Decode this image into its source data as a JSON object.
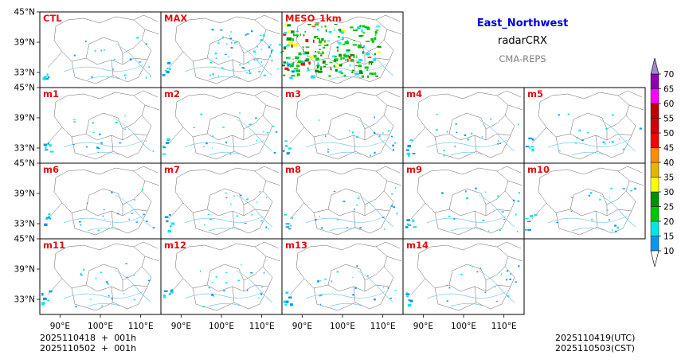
{
  "titles": {
    "region": "East_Northwest",
    "variable": "radarCRX",
    "model": "CMA-REPS"
  },
  "footer": {
    "init_utc": "2025110418  +  001h",
    "init_cst": "2025110502  +  001h",
    "valid_utc": "2025110419(UTC)",
    "valid_cst": "2025110503(CST)"
  },
  "colors": {
    "panel_label": "#e01010",
    "border_line": "#555555",
    "river": "#7ec8e3"
  },
  "chart_data": {
    "type": "map-panels",
    "panels": [
      {
        "label": "CTL",
        "coverage": "low",
        "echo": true
      },
      {
        "label": "MAX",
        "coverage": "medium",
        "echo": true
      },
      {
        "label": "MESO_1km",
        "coverage": "high",
        "echo": true
      },
      {
        "label": "m1",
        "coverage": "low"
      },
      {
        "label": "m2",
        "coverage": "low"
      },
      {
        "label": "m3",
        "coverage": "low"
      },
      {
        "label": "m4",
        "coverage": "low"
      },
      {
        "label": "m5",
        "coverage": "low"
      },
      {
        "label": "m6",
        "coverage": "low"
      },
      {
        "label": "m7",
        "coverage": "low"
      },
      {
        "label": "m8",
        "coverage": "low"
      },
      {
        "label": "m9",
        "coverage": "low"
      },
      {
        "label": "m10",
        "coverage": "low"
      },
      {
        "label": "m11",
        "coverage": "low"
      },
      {
        "label": "m12",
        "coverage": "low"
      },
      {
        "label": "m13",
        "coverage": "low"
      },
      {
        "label": "m14",
        "coverage": "low"
      }
    ],
    "xticks": [
      {
        "value": 90,
        "label": "90°E"
      },
      {
        "value": 100,
        "label": "100°E"
      },
      {
        "value": 110,
        "label": "110°E"
      }
    ],
    "yticks": [
      {
        "value": 33,
        "label": "33°N"
      },
      {
        "value": 39,
        "label": "39°N"
      },
      {
        "value": 45,
        "label": "45°N"
      }
    ],
    "xlim": [
      85,
      115
    ],
    "ylim": [
      30,
      45
    ],
    "colorbar": {
      "levels": [
        10,
        15,
        20,
        25,
        30,
        35,
        40,
        45,
        50,
        55,
        60,
        65,
        70
      ],
      "colors": [
        "#0a96f0",
        "#00e6e6",
        "#00c800",
        "#009000",
        "#ffff00",
        "#e6b400",
        "#ff8c00",
        "#ff0000",
        "#d20000",
        "#c00000",
        "#ff00ff",
        "#9000b0",
        "#a088d0"
      ],
      "extend": "both"
    }
  }
}
